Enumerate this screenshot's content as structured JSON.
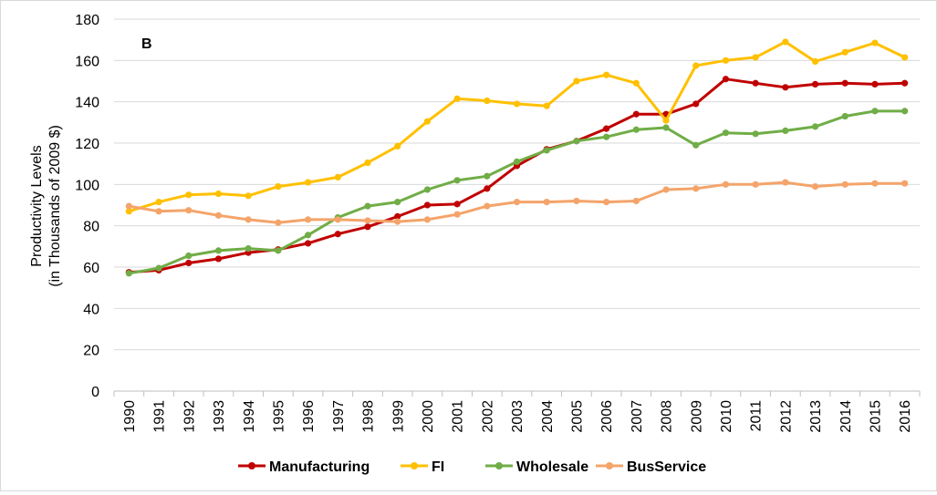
{
  "chart_data": {
    "type": "line",
    "panel_label": "B",
    "ylabel_line1": "Productivity Levels",
    "ylabel_line2": "(in Thousands of 2009 $)",
    "xlabel": "",
    "ylim": [
      0,
      180
    ],
    "yticks": [
      0,
      20,
      40,
      60,
      80,
      100,
      120,
      140,
      160,
      180
    ],
    "grid": "horizontal",
    "legend_position": "bottom",
    "x": [
      "1990",
      "1991",
      "1992",
      "1993",
      "1994",
      "1995",
      "1996",
      "1997",
      "1998",
      "1999",
      "2000",
      "2001",
      "2002",
      "2003",
      "2004",
      "2005",
      "2006",
      "2007",
      "2008",
      "2009",
      "2010",
      "2011",
      "2012",
      "2013",
      "2014",
      "2015",
      "2016"
    ],
    "series": [
      {
        "name": "Manufacturing",
        "color": "#c00000",
        "values": [
          57.5,
          58.5,
          62,
          64,
          67,
          68.5,
          71.5,
          76,
          79.5,
          84.5,
          90,
          90.5,
          98,
          109,
          117,
          121,
          127,
          134,
          134,
          139,
          151,
          149,
          147,
          148.5,
          149,
          148.5,
          149
        ]
      },
      {
        "name": "FI",
        "color": "#ffc000",
        "values": [
          87,
          91.5,
          95,
          95.5,
          94.5,
          99,
          101,
          103.5,
          110.5,
          118.5,
          130.5,
          141.5,
          140.5,
          139,
          138,
          150,
          153,
          149,
          131,
          157.5,
          160,
          161.5,
          169,
          159.5,
          164,
          168.5,
          161.5
        ]
      },
      {
        "name": "Wholesale",
        "color": "#70ad47",
        "values": [
          57,
          59.5,
          65.5,
          68,
          69,
          68,
          75.5,
          84,
          89.5,
          91.5,
          97.5,
          102,
          104,
          111,
          116.5,
          121,
          123,
          126.5,
          127.5,
          119,
          125,
          124.5,
          126,
          128,
          133,
          135.5,
          135.5
        ]
      },
      {
        "name": "BusService",
        "color": "#f4a46a",
        "values": [
          89.5,
          87,
          87.5,
          85,
          83,
          81.5,
          83,
          83,
          82.5,
          82,
          83,
          85.5,
          89.5,
          91.5,
          91.5,
          92,
          91.5,
          92,
          97.5,
          98,
          100,
          100,
          101,
          99,
          100,
          100.5,
          100.5
        ]
      }
    ]
  }
}
